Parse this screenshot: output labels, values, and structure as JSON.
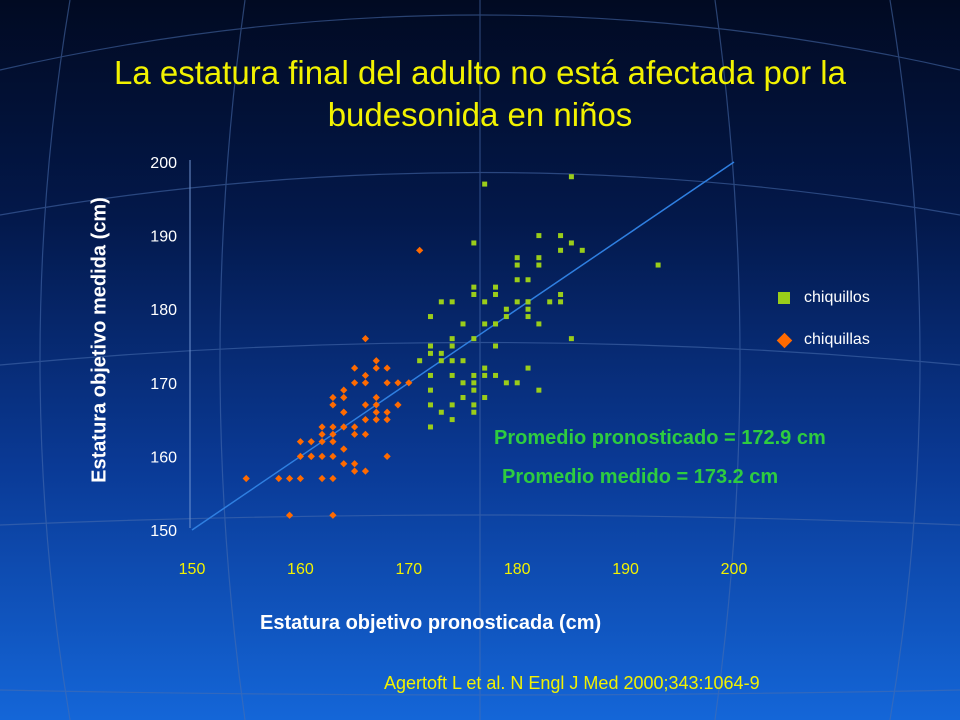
{
  "title": "La estatura final del adulto no está afectada por la budesonida en niños",
  "annotations": {
    "predicted_mean": "Promedio pronosticado = 172.9 cm",
    "measured_mean": "Promedio medido = 173.2 cm"
  },
  "citation": "Agertoft L et al. N Engl J Med 2000;343:1064-9",
  "colors": {
    "boys": "#9acd1a",
    "girls": "#ff6a00",
    "title": "#f2f200",
    "annotation": "#2ecc40",
    "trendline": "#2f7fe0"
  },
  "chart_data": {
    "type": "scatter",
    "title": "",
    "xlabel": "Estatura objetivo pronosticada (cm)",
    "ylabel": "Estatura objetivo medida (cm)",
    "xlim": [
      150,
      200
    ],
    "ylim": [
      150,
      200
    ],
    "xticks": [
      "150",
      "160",
      "170",
      "180",
      "190",
      "200"
    ],
    "yticks": [
      "150",
      "160",
      "170",
      "180",
      "190",
      "200"
    ],
    "legend_position": "right",
    "grid": false,
    "trendline": {
      "x": [
        150,
        200
      ],
      "y": [
        150,
        200
      ]
    },
    "series": [
      {
        "name": "chiquillos",
        "marker": "square",
        "x": [
          177,
          185,
          184,
          185,
          176,
          182,
          184,
          186,
          180,
          182,
          182,
          180,
          193,
          180,
          181,
          178,
          176,
          176,
          178,
          184,
          183,
          184,
          181,
          181,
          180,
          181,
          179,
          181,
          179,
          178,
          177,
          178,
          173,
          174,
          177,
          175,
          182,
          185,
          172,
          174,
          176,
          172,
          173,
          178,
          174,
          172,
          174,
          173,
          175,
          176,
          171,
          177,
          181,
          172,
          176,
          178,
          175,
          179,
          180,
          174,
          172,
          176,
          172,
          174,
          177,
          177,
          175,
          176,
          174,
          176,
          182,
          173,
          172,
          175
        ],
        "y": [
          197,
          198,
          190,
          189,
          189,
          190,
          188,
          188,
          187,
          187,
          186,
          186,
          186,
          184,
          184,
          183,
          183,
          182,
          182,
          182,
          181,
          181,
          181,
          181,
          181,
          180,
          180,
          179,
          179,
          178,
          178,
          178,
          181,
          181,
          181,
          178,
          178,
          176,
          179,
          176,
          176,
          175,
          174,
          175,
          175,
          174,
          173,
          173,
          173,
          170,
          173,
          172,
          172,
          171,
          171,
          171,
          170,
          170,
          170,
          171,
          169,
          169,
          167,
          167,
          168,
          171,
          168,
          167,
          165,
          166,
          169,
          166,
          164,
          168
        ]
      },
      {
        "name": "chiquillas",
        "marker": "diamond",
        "x": [
          171,
          166,
          167,
          167,
          165,
          166,
          168,
          166,
          165,
          164,
          168,
          169,
          170,
          167,
          164,
          164,
          163,
          164,
          163,
          166,
          169,
          167,
          167,
          168,
          166,
          167,
          168,
          165,
          164,
          166,
          165,
          164,
          163,
          163,
          162,
          162,
          162,
          161,
          160,
          163,
          164,
          164,
          163,
          161,
          160,
          164,
          162,
          161,
          168,
          165,
          165,
          166,
          163,
          160,
          159,
          155,
          162,
          158,
          163,
          159
        ],
        "y": [
          188,
          176,
          173,
          172,
          172,
          171,
          172,
          170,
          170,
          169,
          170,
          170,
          170,
          168,
          168,
          166,
          168,
          166,
          167,
          167,
          167,
          167,
          166,
          166,
          165,
          165,
          165,
          164,
          164,
          163,
          163,
          164,
          164,
          163,
          164,
          163,
          162,
          162,
          162,
          162,
          161,
          161,
          160,
          160,
          160,
          159,
          160,
          160,
          160,
          159,
          158,
          158,
          157,
          157,
          157,
          157,
          157,
          157,
          152,
          152
        ]
      }
    ]
  }
}
